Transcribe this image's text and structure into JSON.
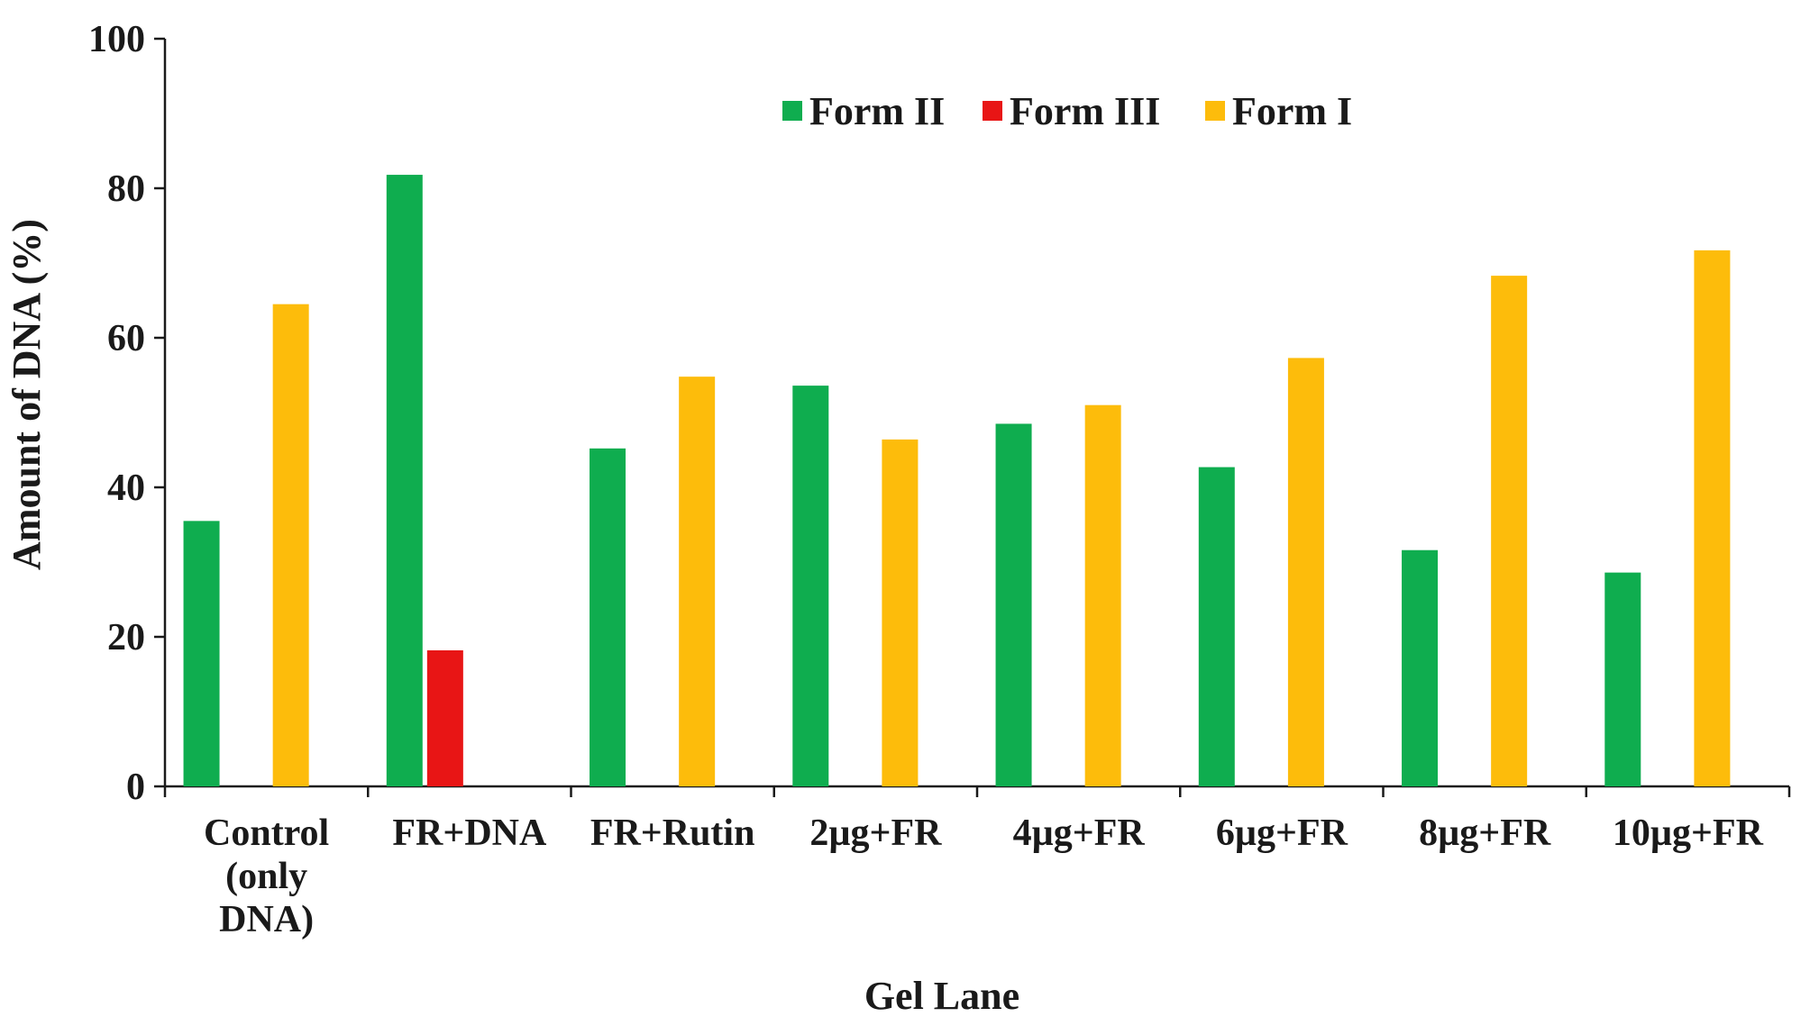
{
  "chart_data": {
    "type": "bar",
    "title": "",
    "xlabel": "Gel Lane",
    "ylabel": "Amount of DNA (%)",
    "ylim": [
      0,
      100
    ],
    "yticks": [
      0,
      20,
      40,
      60,
      80,
      100
    ],
    "grid": false,
    "legend_position": "top-center",
    "categories": [
      [
        "Control",
        "(only",
        "DNA)"
      ],
      [
        "FR+DNA"
      ],
      [
        "FR+Rutin"
      ],
      [
        "2µg+FR"
      ],
      [
        "4µg+FR"
      ],
      [
        "6µg+FR"
      ],
      [
        "8µg+FR"
      ],
      [
        "10µg+FR"
      ]
    ],
    "series": [
      {
        "name": "Form II",
        "color": "#0fad4f",
        "values": [
          35.5,
          81.8,
          45.2,
          53.6,
          48.5,
          42.7,
          31.6,
          28.6
        ]
      },
      {
        "name": "Form III",
        "color": "#e81515",
        "values": [
          0,
          18.2,
          0,
          0,
          0,
          0,
          0,
          0
        ]
      },
      {
        "name": "Form I",
        "color": "#fdbc0b",
        "values": [
          64.5,
          0,
          54.8,
          46.4,
          51.0,
          57.3,
          68.3,
          71.7
        ]
      }
    ]
  }
}
